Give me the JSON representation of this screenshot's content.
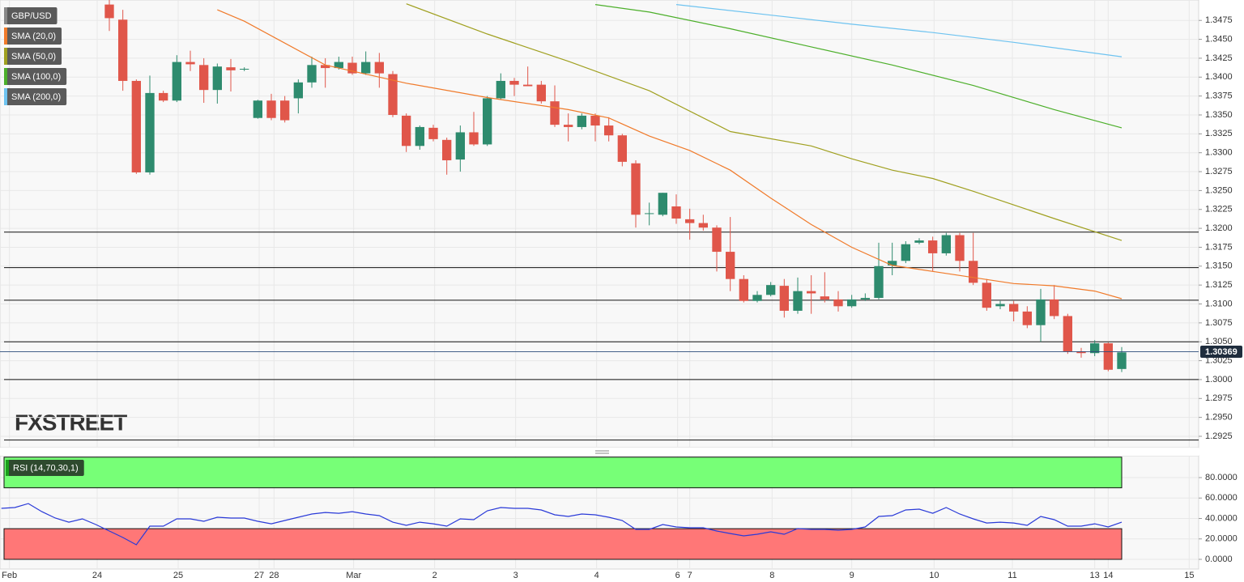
{
  "chart_data": [
    {
      "type": "candlestick",
      "title": "GBP/USD",
      "up_color": "#2e8b6e",
      "down_color": "#e0564a",
      "x": [
        0,
        1,
        2,
        3,
        4,
        5,
        6,
        7,
        8,
        9,
        10,
        11,
        12,
        13,
        14,
        15,
        16,
        17,
        18,
        19,
        20,
        21,
        22,
        23,
        24,
        25,
        26,
        27,
        28,
        29,
        30,
        31,
        32,
        33,
        34,
        35,
        36,
        37,
        38,
        39,
        40,
        41,
        42,
        43,
        44,
        45,
        46,
        47,
        48,
        49,
        50,
        51,
        52,
        53,
        54,
        55,
        56,
        57,
        58,
        59,
        60,
        61,
        62,
        63,
        64,
        65,
        66,
        67,
        68,
        69,
        70,
        71,
        72,
        73,
        74,
        75
      ],
      "open": [
        1.3496,
        1.3476,
        1.3395,
        1.3274,
        1.3379,
        1.3369,
        1.342,
        1.3416,
        1.3383,
        1.3413,
        1.341,
        1.3346,
        1.3369,
        1.3369,
        1.3372,
        1.3393,
        1.3416,
        1.3412,
        1.3419,
        1.3405,
        1.342,
        1.3404,
        1.3349,
        1.3309,
        1.3333,
        1.3317,
        1.3291,
        1.3327,
        1.3311,
        1.3372,
        1.3395,
        1.339,
        1.339,
        1.3368,
        1.3337,
        1.3334,
        1.3349,
        1.3336,
        1.3323,
        1.3286,
        1.3219,
        1.3218,
        1.3229,
        1.3212,
        1.3207,
        1.3201,
        1.3169,
        1.3133,
        1.3104,
        1.3112,
        1.3124,
        1.3091,
        1.3117,
        1.311,
        1.3106,
        1.3097,
        1.3106,
        1.3108,
        1.3151,
        1.3157,
        1.3181,
        1.3184,
        1.3167,
        1.3191,
        1.3157,
        1.3128,
        1.3097,
        1.31,
        1.309,
        1.3072,
        1.3106,
        1.3084,
        1.3037,
        1.3035,
        1.3048,
        1.3014
      ],
      "high": [
        1.3502,
        1.3489,
        1.3397,
        1.3402,
        1.3382,
        1.3429,
        1.3435,
        1.3425,
        1.3418,
        1.3424,
        1.3413,
        1.337,
        1.3378,
        1.3375,
        1.3397,
        1.3427,
        1.3425,
        1.3427,
        1.3427,
        1.3434,
        1.3432,
        1.3408,
        1.3352,
        1.3336,
        1.3337,
        1.332,
        1.3336,
        1.3354,
        1.3375,
        1.3405,
        1.3399,
        1.3414,
        1.3395,
        1.3389,
        1.3352,
        1.3352,
        1.3352,
        1.3347,
        1.3325,
        1.329,
        1.3234,
        1.3247,
        1.3245,
        1.3226,
        1.3218,
        1.3204,
        1.3215,
        1.3138,
        1.3117,
        1.3129,
        1.3133,
        1.3135,
        1.3138,
        1.3142,
        1.3117,
        1.3112,
        1.3114,
        1.3181,
        1.3181,
        1.3183,
        1.3187,
        1.3189,
        1.3194,
        1.3194,
        1.3194,
        1.3133,
        1.3104,
        1.3104,
        1.3097,
        1.312,
        1.3125,
        1.3087,
        1.3042,
        1.3052,
        1.3049,
        1.3043
      ],
      "low": [
        1.3461,
        1.3382,
        1.3272,
        1.3271,
        1.3367,
        1.3367,
        1.3408,
        1.3366,
        1.3365,
        1.3381,
        1.3408,
        1.3345,
        1.3343,
        1.334,
        1.3352,
        1.3386,
        1.3386,
        1.341,
        1.3403,
        1.3403,
        1.3386,
        1.3347,
        1.3301,
        1.3304,
        1.3315,
        1.3271,
        1.3275,
        1.3309,
        1.3309,
        1.337,
        1.3375,
        1.3388,
        1.3365,
        1.3334,
        1.3315,
        1.3331,
        1.3315,
        1.3315,
        1.3282,
        1.3201,
        1.3204,
        1.3216,
        1.3206,
        1.3185,
        1.3197,
        1.3143,
        1.3117,
        1.3102,
        1.3102,
        1.311,
        1.3082,
        1.3087,
        1.3087,
        1.3102,
        1.309,
        1.3095,
        1.3104,
        1.3106,
        1.3138,
        1.3154,
        1.3179,
        1.3143,
        1.3164,
        1.3143,
        1.3125,
        1.3091,
        1.3093,
        1.3077,
        1.3068,
        1.305,
        1.308,
        1.3034,
        1.3029,
        1.3031,
        1.3011,
        1.301
      ],
      "close": [
        1.3478,
        1.3395,
        1.3274,
        1.3379,
        1.3369,
        1.342,
        1.3417,
        1.3383,
        1.3414,
        1.3409,
        1.3411,
        1.3369,
        1.3346,
        1.3343,
        1.3393,
        1.3416,
        1.3412,
        1.342,
        1.3405,
        1.342,
        1.3405,
        1.335,
        1.3309,
        1.3334,
        1.3318,
        1.329,
        1.3327,
        1.3311,
        1.3372,
        1.3395,
        1.339,
        1.3388,
        1.3368,
        1.3337,
        1.3334,
        1.3349,
        1.3336,
        1.3323,
        1.3288,
        1.3218,
        1.322,
        1.3247,
        1.3213,
        1.3207,
        1.3201,
        1.3169,
        1.3133,
        1.3104,
        1.3112,
        1.3125,
        1.3091,
        1.3117,
        1.3114,
        1.3106,
        1.3097,
        1.3106,
        1.3108,
        1.315,
        1.3157,
        1.3179,
        1.3184,
        1.3167,
        1.3191,
        1.3157,
        1.3128,
        1.3095,
        1.31,
        1.309,
        1.3072,
        1.3106,
        1.3084,
        1.3037,
        1.3035,
        1.3048,
        1.3013,
        1.3036
      ],
      "overlays": [
        {
          "name": "SMA (20,0)",
          "color": "#f07a2a",
          "x": [
            8,
            10,
            16,
            22,
            28,
            34,
            37,
            40,
            43,
            46,
            49,
            52,
            55,
            58,
            61,
            64,
            67,
            70,
            73,
            75
          ],
          "values": [
            1.3489,
            1.3474,
            1.3416,
            1.3392,
            1.3373,
            1.3357,
            1.3346,
            1.3322,
            1.3303,
            1.3277,
            1.324,
            1.3205,
            1.3175,
            1.3151,
            1.3143,
            1.3135,
            1.3127,
            1.3124,
            1.3117,
            1.3107
          ]
        },
        {
          "name": "SMA (50,0)",
          "color": "#a0a020",
          "x": [
            22,
            28,
            34,
            40,
            46,
            52,
            55,
            58,
            61,
            64,
            70,
            75
          ],
          "values": [
            1.3497,
            1.3457,
            1.3421,
            1.3382,
            1.3328,
            1.3309,
            1.3292,
            1.3277,
            1.3266,
            1.3249,
            1.3213,
            1.3184
          ]
        },
        {
          "name": "SMA (100,0)",
          "color": "#4caf2a",
          "x": [
            36,
            40,
            46,
            52,
            58,
            64,
            70,
            75
          ],
          "values": [
            1.3496,
            1.3486,
            1.3464,
            1.344,
            1.3416,
            1.3389,
            1.3357,
            1.3333
          ]
        },
        {
          "name": "SMA (200,0)",
          "color": "#6ec3f0",
          "x": [
            42,
            49,
            55,
            61,
            67,
            75
          ],
          "values": [
            1.3496,
            1.3482,
            1.347,
            1.3459,
            1.3446,
            1.3427
          ]
        }
      ],
      "levels": [
        1.3195,
        1.3148,
        1.3105,
        1.305,
        1.3,
        1.292
      ],
      "last_price": 1.30369,
      "watermark": "FXSTREET",
      "xlim": [
        -8.1,
        80.7
      ],
      "ylim": [
        1.291,
        1.3502
      ],
      "yticks": [
        1.2925,
        {
          "value": 1.295,
          "label": "1.2950"
        },
        1.2975,
        {
          "value": 1.3,
          "label": "1.3000"
        },
        1.3025,
        {
          "value": 1.305,
          "label": "1.3050"
        },
        1.3075,
        {
          "value": 1.31,
          "label": "1.3100"
        },
        1.3125,
        {
          "value": 1.315,
          "label": "1.3150"
        },
        1.3175,
        {
          "value": 1.32,
          "label": "1.3200"
        },
        1.3225,
        {
          "value": 1.325,
          "label": "1.3250"
        },
        1.3275,
        {
          "value": 1.33,
          "label": "1.3300"
        },
        1.3325,
        {
          "value": 1.335,
          "label": "1.3350"
        },
        1.3375,
        {
          "value": 1.34,
          "label": "1.3400"
        },
        1.3425,
        {
          "value": 1.345,
          "label": "1.3450"
        },
        1.3475
      ],
      "grid": true
    },
    {
      "type": "line",
      "title": "RSI (14,70,30,1)",
      "color": "#2a3ad8",
      "x": [
        -8,
        -7,
        -6,
        -5,
        -4,
        -3,
        -2,
        -1,
        0,
        1,
        2,
        3,
        4,
        5,
        6,
        7,
        8,
        9,
        10,
        11,
        12,
        13,
        14,
        15,
        16,
        17,
        18,
        19,
        20,
        21,
        22,
        23,
        24,
        25,
        26,
        27,
        28,
        29,
        30,
        31,
        32,
        33,
        34,
        35,
        36,
        37,
        38,
        39,
        40,
        41,
        42,
        43,
        44,
        45,
        46,
        47,
        48,
        49,
        50,
        51,
        52,
        53,
        54,
        55,
        56,
        57,
        58,
        59,
        60,
        61,
        62,
        63,
        64,
        65,
        66,
        67,
        68,
        69,
        70,
        71,
        72,
        73,
        74,
        75
      ],
      "values": [
        49.9,
        50.7,
        54.6,
        46.7,
        40.4,
        36.4,
        39.6,
        34.1,
        27.7,
        21.4,
        14.3,
        32.5,
        32.5,
        39.6,
        39.6,
        37.2,
        41.2,
        40.4,
        40.4,
        37.2,
        34.8,
        38.0,
        41.2,
        44.4,
        45.9,
        45.1,
        46.7,
        44.4,
        42.8,
        36.4,
        33.3,
        36.4,
        34.8,
        32.5,
        39.6,
        38.8,
        47.5,
        50.7,
        49.9,
        49.9,
        48.3,
        43.6,
        42.0,
        44.4,
        43.6,
        41.2,
        38.0,
        29.3,
        29.3,
        34.1,
        31.7,
        30.9,
        30.9,
        27.7,
        25.3,
        23.0,
        24.6,
        26.9,
        24.6,
        30.1,
        29.3,
        29.3,
        28.5,
        29.3,
        31.7,
        42.0,
        42.8,
        48.3,
        49.1,
        45.1,
        50.7,
        44.4,
        39.6,
        35.6,
        36.4,
        35.6,
        33.3,
        42.0,
        38.8,
        32.5,
        32.5,
        34.8,
        31.7,
        36.4
      ],
      "bands": [
        {
          "from": 70,
          "to": 100,
          "color": "#77ff77"
        },
        {
          "from": 0,
          "to": 30,
          "color": "#ff7777"
        }
      ],
      "xlim": [
        -8.1,
        80.7
      ],
      "ylim": [
        -9.5,
        101.4
      ],
      "yticks": [
        {
          "value": 0,
          "label": "0.0000"
        },
        {
          "value": 20,
          "label": "20.0000"
        },
        {
          "value": 40,
          "label": "40.0000"
        },
        {
          "value": 60,
          "label": "60.0000"
        },
        {
          "value": 80,
          "label": "80.0000"
        }
      ],
      "xticks": [
        {
          "value": -7.4,
          "label": "Feb"
        },
        {
          "value": -0.9,
          "label": "24"
        },
        {
          "value": 5.1,
          "label": "25"
        },
        {
          "value": 11.1,
          "label": "27"
        },
        {
          "value": 12.2,
          "label": "28"
        },
        {
          "value": 18.1,
          "label": "Mar"
        },
        {
          "value": 24.1,
          "label": "2"
        },
        {
          "value": 30.1,
          "label": "3"
        },
        {
          "value": 36.1,
          "label": "4"
        },
        {
          "value": 42.1,
          "label": "6"
        },
        {
          "value": 43.0,
          "label": "7"
        },
        {
          "value": 49.1,
          "label": "8"
        },
        {
          "value": 55.0,
          "label": "9"
        },
        {
          "value": 61.1,
          "label": "10"
        },
        {
          "value": 66.9,
          "label": "11"
        },
        {
          "value": 73.0,
          "label": "13"
        },
        {
          "value": 74.0,
          "label": "14"
        },
        {
          "value": 80.0,
          "label": "15"
        }
      ],
      "grid": true
    }
  ]
}
